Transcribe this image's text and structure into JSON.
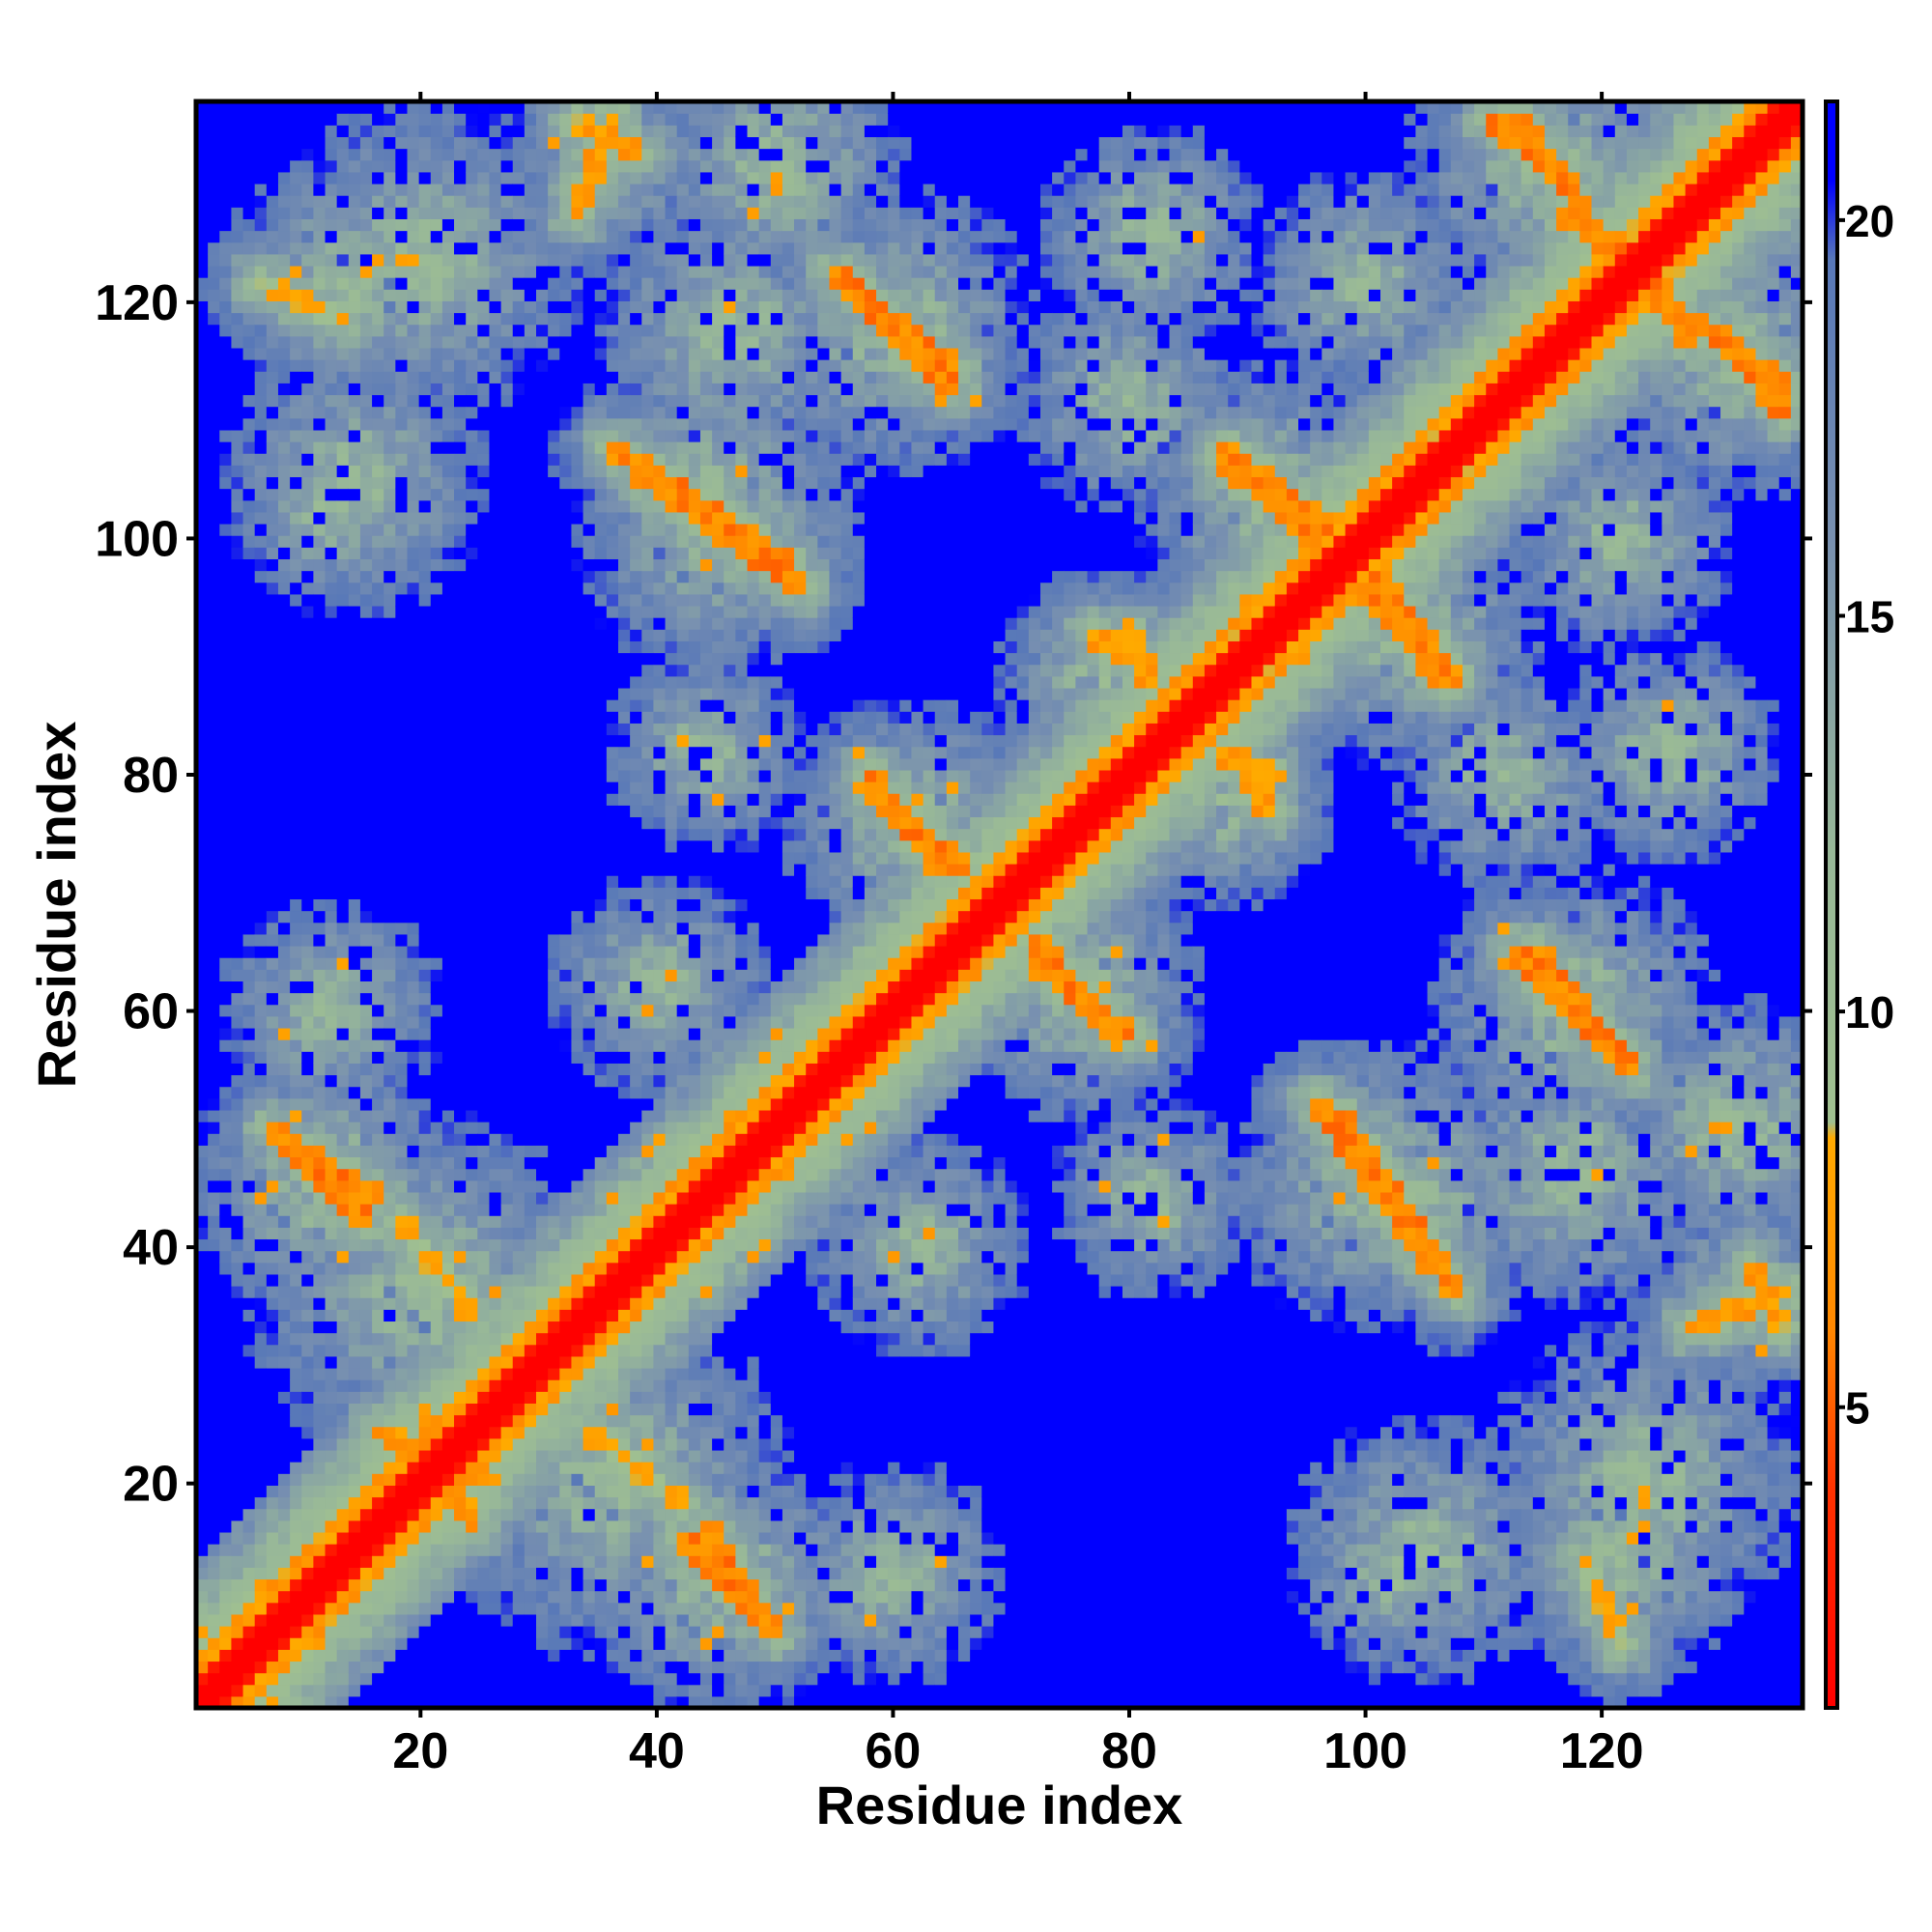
{
  "chart_data": {
    "type": "heatmap",
    "title": "",
    "xlabel": "Residue index",
    "ylabel": "Residue index",
    "n_residues": 137,
    "xlim": [
      1,
      137
    ],
    "ylim": [
      1,
      137
    ],
    "x_ticks": [
      20,
      40,
      60,
      80,
      100,
      120
    ],
    "y_ticks": [
      20,
      40,
      60,
      80,
      100,
      120
    ],
    "colorbar": {
      "ticks": [
        5,
        10,
        15,
        20
      ],
      "range": [
        1.2,
        21.5
      ],
      "stops": [
        {
          "value": 1.2,
          "color": "#ff0000"
        },
        {
          "value": 4.0,
          "color": "#ff3300"
        },
        {
          "value": 6.0,
          "color": "#ff8800"
        },
        {
          "value": 8.4,
          "color": "#ffaa00"
        },
        {
          "value": 8.6,
          "color": "#a0c090"
        },
        {
          "value": 12.0,
          "color": "#98b898"
        },
        {
          "value": 16.0,
          "color": "#7890b0"
        },
        {
          "value": 19.5,
          "color": "#5878b8"
        },
        {
          "value": 20.5,
          "color": "#0000ff"
        },
        {
          "value": 21.5,
          "color": "#0000ff"
        }
      ]
    },
    "background_value": 21,
    "diagonal_value": 1.2,
    "contact_bands": [
      {
        "x1": 44,
        "y1": 16,
        "x2": 49,
        "y2": 8,
        "v": 5
      },
      {
        "x1": 7,
        "y1": 50,
        "x2": 15,
        "y2": 42,
        "v": 5
      },
      {
        "x1": 33,
        "y1": 128,
        "x2": 36,
        "y2": 136,
        "v": 6
      },
      {
        "x1": 58,
        "y1": 80,
        "x2": 64,
        "y2": 72,
        "v": 5
      },
      {
        "x1": 72,
        "y1": 66,
        "x2": 79,
        "y2": 58,
        "v": 5
      },
      {
        "x1": 36,
        "y1": 108,
        "x2": 51,
        "y2": 98,
        "v": 5
      },
      {
        "x1": 55,
        "y1": 123,
        "x2": 65,
        "y2": 113,
        "v": 5
      },
      {
        "x1": 88,
        "y1": 108,
        "x2": 97,
        "y2": 101,
        "v": 5
      },
      {
        "x1": 100,
        "y1": 96,
        "x2": 107,
        "y2": 88,
        "v": 5
      },
      {
        "x1": 96,
        "y1": 52,
        "x2": 106,
        "y2": 38,
        "v": 5
      },
      {
        "x1": 115,
        "y1": 65,
        "x2": 121,
        "y2": 57,
        "v": 5
      },
      {
        "x1": 113,
        "y1": 136,
        "x2": 118,
        "y2": 130,
        "v": 5
      },
      {
        "x1": 118,
        "y1": 129,
        "x2": 122,
        "y2": 124,
        "v": 5
      },
      {
        "x1": 124,
        "y1": 122,
        "x2": 128,
        "y2": 117,
        "v": 5
      },
      {
        "x1": 130,
        "y1": 118,
        "x2": 136,
        "y2": 111,
        "v": 5
      },
      {
        "x1": 80,
        "y1": 92,
        "x2": 82,
        "y2": 88,
        "v": 6
      },
      {
        "x1": 90,
        "y1": 81,
        "x2": 92,
        "y2": 77,
        "v": 6
      },
      {
        "x1": 133,
        "y1": 38,
        "x2": 136,
        "y2": 33,
        "v": 6
      },
      {
        "x1": 6,
        "y1": 122,
        "x2": 13,
        "y2": 119,
        "v": 7
      },
      {
        "x1": 16,
        "y1": 24,
        "x2": 26,
        "y2": 20,
        "v": 6
      },
      {
        "x1": 18,
        "y1": 42,
        "x2": 24,
        "y2": 34,
        "v": 7
      }
    ],
    "halo_regions": [
      {
        "cx": 36,
        "cy": 20,
        "r": 16
      },
      {
        "cx": 20,
        "cy": 36,
        "r": 15
      },
      {
        "cx": 11,
        "cy": 45,
        "r": 12
      },
      {
        "cx": 12,
        "cy": 103,
        "r": 9
      },
      {
        "cx": 20,
        "cy": 124,
        "r": 14
      },
      {
        "cx": 50,
        "cy": 132,
        "r": 12
      },
      {
        "cx": 44,
        "cy": 104,
        "r": 12
      },
      {
        "cx": 46,
        "cy": 118,
        "r": 12
      },
      {
        "cx": 47,
        "cy": 12,
        "r": 10
      },
      {
        "cx": 40,
        "cy": 62,
        "r": 10
      },
      {
        "cx": 60,
        "cy": 12,
        "r": 10
      },
      {
        "cx": 61,
        "cy": 76,
        "r": 11
      },
      {
        "cx": 76,
        "cy": 62,
        "r": 11
      },
      {
        "cx": 60,
        "cy": 118,
        "r": 13
      },
      {
        "cx": 92,
        "cy": 104,
        "r": 12
      },
      {
        "cx": 104,
        "cy": 92,
        "r": 12
      },
      {
        "cx": 101,
        "cy": 45,
        "r": 13
      },
      {
        "cx": 118,
        "cy": 61,
        "r": 12
      },
      {
        "cx": 116,
        "cy": 132,
        "r": 12
      },
      {
        "cx": 132,
        "cy": 115,
        "r": 12
      },
      {
        "cx": 105,
        "cy": 14,
        "r": 12
      },
      {
        "cx": 122,
        "cy": 14,
        "r": 12
      },
      {
        "cx": 133,
        "cy": 36,
        "r": 9
      },
      {
        "cx": 88,
        "cy": 78,
        "r": 10
      },
      {
        "cx": 100,
        "cy": 122,
        "r": 10
      },
      {
        "cx": 80,
        "cy": 112,
        "r": 10
      },
      {
        "cx": 126,
        "cy": 82,
        "r": 10
      },
      {
        "cx": 82,
        "cy": 44,
        "r": 9
      }
    ]
  }
}
